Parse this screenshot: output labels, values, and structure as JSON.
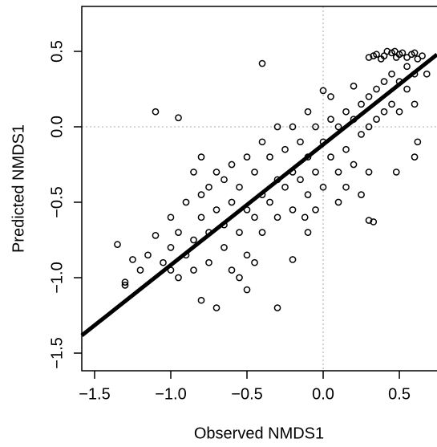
{
  "chart_data": {
    "type": "scatter",
    "x_label": "Observed NMDS1",
    "y_label": "Predicted NMDS1",
    "xlim": [
      -1.584,
      0.747
    ],
    "ylim": [
      -1.617,
      0.798
    ],
    "xticks": [
      {
        "value": -1.5,
        "label": "−1.5"
      },
      {
        "value": -1.0,
        "label": "−1.0"
      },
      {
        "value": -0.5,
        "label": "−0.5"
      },
      {
        "value": 0.0,
        "label": "0.0"
      },
      {
        "value": 0.5,
        "label": "0.5"
      }
    ],
    "yticks": [
      {
        "value": -1.5,
        "label": "−1.5"
      },
      {
        "value": -1.0,
        "label": "−1.0"
      },
      {
        "value": -0.5,
        "label": "−0.5"
      },
      {
        "value": 0.0,
        "label": "0.0"
      },
      {
        "value": 0.5,
        "label": "0.5"
      }
    ],
    "reference_lines": {
      "x": 0,
      "y": 0
    },
    "fit_line": {
      "x": [
        -1.584,
        0.747
      ],
      "y": [
        -1.383,
        0.479
      ]
    },
    "series": [
      {
        "color": "#000000",
        "x": [
          0.3,
          0.35,
          0.4,
          0.45,
          0.5,
          0.55,
          0.6,
          0.65,
          0.38,
          0.42,
          0.48,
          0.52,
          0.58,
          0.62,
          0.33,
          0.47,
          -1.1,
          -0.95,
          -0.4,
          -1.35,
          -1.3,
          -1.3,
          0.3,
          0.33,
          0.6,
          0.62,
          -0.7,
          -0.8,
          -0.3,
          -0.1,
          0.0,
          0.2,
          0.48,
          0.68,
          -0.5,
          -0.2,
          -1.2,
          -1.15,
          -1.1,
          -1.05,
          -1.0,
          -1.0,
          -0.95,
          -0.9,
          -0.9,
          -0.85,
          -0.85,
          -0.8,
          -0.8,
          -0.75,
          -0.75,
          -0.7,
          -0.7,
          -0.65,
          -0.65,
          -0.6,
          -0.6,
          -0.55,
          -0.55,
          -0.5,
          -0.5,
          -0.45,
          -0.45,
          -0.4,
          -0.4,
          -0.35,
          -0.35,
          -0.3,
          -0.3,
          -0.25,
          -0.25,
          -0.2,
          -0.2,
          -0.15,
          -0.15,
          -0.1,
          -0.1,
          -0.05,
          -0.05,
          0.0,
          0.0,
          0.05,
          0.05,
          0.1,
          0.1,
          0.15,
          0.15,
          0.2,
          0.2,
          0.25,
          0.25,
          0.3,
          0.3,
          0.35,
          0.35,
          0.4,
          0.4,
          0.45,
          0.45,
          0.5,
          0.5,
          0.55,
          0.55,
          0.6,
          0.6,
          0.3,
          0.25,
          0.1,
          -0.6,
          -0.55,
          -0.45,
          -1.25,
          -1.0,
          -0.95,
          -0.85,
          -0.8,
          -0.75,
          -0.65,
          -0.5,
          -0.4,
          -0.3,
          -0.2,
          -0.1,
          0.05,
          -0.12,
          -0.05,
          0.15
        ],
        "values": [
          0.46,
          0.48,
          0.47,
          0.49,
          0.48,
          0.46,
          0.49,
          0.47,
          0.45,
          0.5,
          0.46,
          0.49,
          0.48,
          0.45,
          0.47,
          0.5,
          0.1,
          0.06,
          0.42,
          -0.78,
          -1.03,
          -1.05,
          -0.62,
          -0.63,
          -0.2,
          -0.1,
          -1.2,
          -1.15,
          -1.2,
          -0.7,
          0.24,
          0.27,
          -0.3,
          0.35,
          -1.08,
          -0.88,
          -0.95,
          -0.85,
          -0.72,
          -0.9,
          -0.8,
          -0.6,
          -0.7,
          -0.5,
          -0.85,
          -0.75,
          -0.95,
          -0.6,
          -0.45,
          -0.7,
          -0.9,
          -0.55,
          -0.3,
          -0.65,
          -0.8,
          -0.5,
          -0.25,
          -0.4,
          -0.7,
          -0.55,
          -0.85,
          -0.3,
          -0.6,
          -0.45,
          -0.7,
          -0.2,
          -0.5,
          -0.35,
          -0.6,
          -0.15,
          -0.4,
          -0.3,
          -0.55,
          -0.1,
          -0.35,
          -0.2,
          -0.45,
          0.0,
          -0.3,
          -0.1,
          -0.4,
          0.05,
          -0.2,
          0.0,
          -0.3,
          0.1,
          -0.15,
          0.05,
          -0.25,
          0.15,
          -0.05,
          0.2,
          0.0,
          0.25,
          0.05,
          0.3,
          0.1,
          0.35,
          0.15,
          0.3,
          0.1,
          0.25,
          0.4,
          0.35,
          0.15,
          -0.3,
          -0.45,
          -0.5,
          -0.95,
          -1.0,
          -0.9,
          -0.88,
          -0.95,
          -1.0,
          -0.3,
          -0.2,
          -0.4,
          -0.35,
          -0.2,
          -0.1,
          0.0,
          0.0,
          0.1,
          0.2,
          -0.6,
          -0.55,
          -0.4
        ]
      }
    ]
  }
}
